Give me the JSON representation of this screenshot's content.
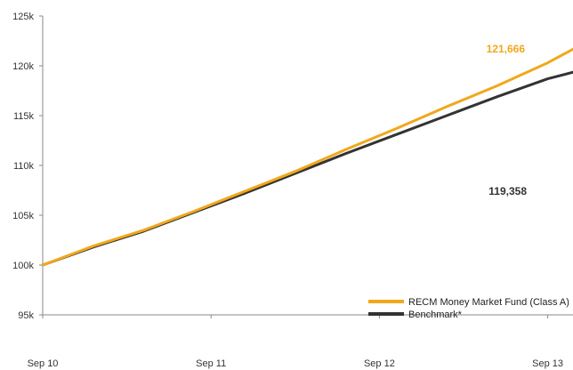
{
  "chart_data": {
    "type": "line",
    "title": "",
    "xlabel": "",
    "ylabel": "",
    "x_ticks": [
      "Sep 10",
      "Sep 11",
      "Sep 12",
      "Sep 13"
    ],
    "y_ticks": [
      "95k",
      "100k",
      "105k",
      "110k",
      "115k",
      "120k",
      "125k"
    ],
    "ylim": [
      95000,
      125000
    ],
    "xlim": [
      0,
      3.15
    ],
    "grid": false,
    "legend_position": "bottom-right",
    "series": [
      {
        "name": "RECM Money Market Fund (Class A)",
        "color": "#F0A81C",
        "x": [
          0,
          0.3,
          0.6,
          0.9,
          1.2,
          1.5,
          1.8,
          2.1,
          2.4,
          2.7,
          3.0,
          3.15
        ],
        "values": [
          100000,
          101900,
          103500,
          105400,
          107400,
          109400,
          111600,
          113700,
          115900,
          118000,
          120300,
          121666
        ],
        "end_label": "121,666"
      },
      {
        "name": "Benchmark*",
        "color": "#333333",
        "x": [
          0,
          0.3,
          0.6,
          0.9,
          1.2,
          1.5,
          1.8,
          2.1,
          2.4,
          2.7,
          3.0,
          3.15
        ],
        "values": [
          100000,
          101800,
          103400,
          105300,
          107200,
          109200,
          111200,
          113100,
          115000,
          116900,
          118700,
          119358
        ],
        "end_label": "119,358"
      }
    ]
  }
}
